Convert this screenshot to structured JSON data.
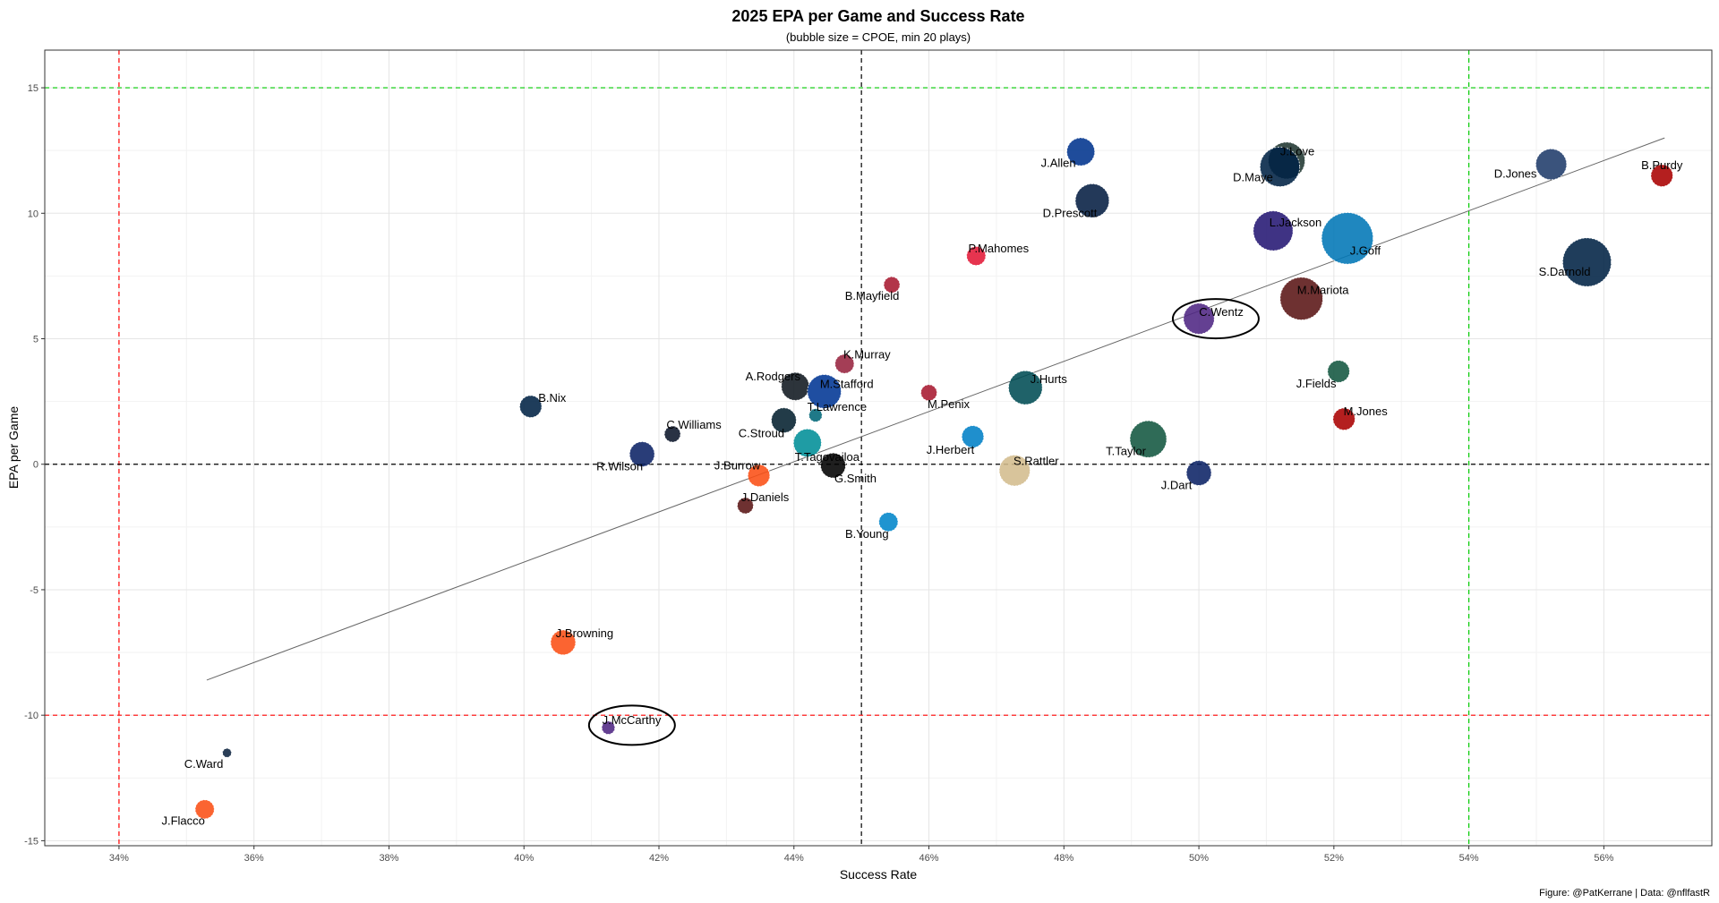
{
  "chart_data": {
    "type": "scatter",
    "title": "2025 EPA per Game and Success Rate",
    "subtitle": "(bubble size = CPOE, min 20 plays)",
    "xlabel": "Success Rate",
    "ylabel": "EPA per Game",
    "caption": "Figure: @PatKerrane | Data: @nflfastR",
    "xlim": [
      0.329,
      0.576
    ],
    "ylim": [
      -15.2,
      16.5
    ],
    "x_ticks": [
      0.34,
      0.36,
      0.38,
      0.4,
      0.42,
      0.44,
      0.46,
      0.48,
      0.5,
      0.52,
      0.54,
      0.56
    ],
    "x_tick_labels": [
      "34%",
      "36%",
      "38%",
      "40%",
      "42%",
      "44%",
      "46%",
      "48%",
      "50%",
      "52%",
      "54%",
      "56%"
    ],
    "y_ticks": [
      -15,
      -10,
      -5,
      0,
      5,
      10,
      15
    ],
    "y_tick_labels": [
      "-15",
      "-10",
      "-5",
      "0",
      "5",
      "10",
      "15"
    ],
    "grid": true,
    "reference_lines": {
      "vertical": [
        {
          "x": 0.34,
          "color": "#ff0000",
          "style": "dashed"
        },
        {
          "x": 0.45,
          "color": "#000000",
          "style": "dashed"
        },
        {
          "x": 0.54,
          "color": "#00cc00",
          "style": "dashed"
        }
      ],
      "horizontal": [
        {
          "y": 15,
          "color": "#00cc00",
          "style": "dashed"
        },
        {
          "y": 0,
          "color": "#000000",
          "style": "dashed"
        },
        {
          "y": -10,
          "color": "#ff0000",
          "style": "dashed"
        }
      ]
    },
    "trend_line": {
      "x": [
        0.353,
        0.569
      ],
      "y": [
        -8.6,
        13.0
      ],
      "color": "#666666"
    },
    "highlight_ellipses": [
      {
        "player": "C.Wentz",
        "cx": 0.5025,
        "cy": 5.8
      },
      {
        "player": "J.McCarthy",
        "cx": 0.416,
        "cy": -10.4
      }
    ],
    "points": [
      {
        "player": "B.Purdy",
        "x": 0.5686,
        "y": 11.5,
        "cpoe": 2.5,
        "color": "#aa0000",
        "label_dx": 0,
        "label_dy": -11
      },
      {
        "player": "D.Jones",
        "x": 0.5522,
        "y": 11.95,
        "cpoe": 4.0,
        "color": "#1f3b6a",
        "label_dx": -40,
        "label_dy": 11
      },
      {
        "player": "S.Darnold",
        "x": 0.5575,
        "y": 8.05,
        "cpoe": 7.0,
        "color": "#002244",
        "label_dx": -25,
        "label_dy": 11
      },
      {
        "player": "J.Love",
        "x": 0.513,
        "y": 12.1,
        "cpoe": 5.0,
        "color": "#203731",
        "label_dx": 12,
        "label_dy": -10
      },
      {
        "player": "D.Maye",
        "x": 0.512,
        "y": 11.85,
        "cpoe": 5.5,
        "color": "#002244",
        "label_dx": -30,
        "label_dy": 12
      },
      {
        "player": "J.Allen",
        "x": 0.4825,
        "y": 12.45,
        "cpoe": 3.5,
        "color": "#00338d",
        "label_dx": -25,
        "label_dy": 13
      },
      {
        "player": "D.Prescott",
        "x": 0.4842,
        "y": 10.5,
        "cpoe": 4.5,
        "color": "#041e42",
        "label_dx": -25,
        "label_dy": 14
      },
      {
        "player": "L.Jackson",
        "x": 0.511,
        "y": 9.3,
        "cpoe": 5.5,
        "color": "#241773",
        "label_dx": 25,
        "label_dy": -9
      },
      {
        "player": "J.Goff",
        "x": 0.522,
        "y": 9.0,
        "cpoe": 7.5,
        "color": "#0076b6",
        "label_dx": 20,
        "label_dy": 14
      },
      {
        "player": "M.Mariota",
        "x": 0.5152,
        "y": 6.6,
        "cpoe": 6.0,
        "color": "#5a1414",
        "label_dx": 24,
        "label_dy": -9
      },
      {
        "player": "C.Wentz",
        "x": 0.5,
        "y": 5.8,
        "cpoe": 4.0,
        "color": "#4f2683",
        "label_dx": 25,
        "label_dy": -7
      },
      {
        "player": "P.Mahomes",
        "x": 0.467,
        "y": 8.3,
        "cpoe": 2.0,
        "color": "#e31837",
        "label_dx": 25,
        "label_dy": -8
      },
      {
        "player": "B.Mayfield",
        "x": 0.4545,
        "y": 7.15,
        "cpoe": 1.5,
        "color": "#a71930",
        "label_dx": -22,
        "label_dy": 13
      },
      {
        "player": "K.Murray",
        "x": 0.4475,
        "y": 4.0,
        "cpoe": 2.0,
        "color": "#97233f",
        "label_dx": 25,
        "label_dy": -10
      },
      {
        "player": "A.Rodgers",
        "x": 0.4402,
        "y": 3.1,
        "cpoe": 3.5,
        "color": "#101820",
        "label_dx": -25,
        "label_dy": -11
      },
      {
        "player": "M.Stafford",
        "x": 0.4445,
        "y": 2.9,
        "cpoe": 4.5,
        "color": "#003594",
        "label_dx": 25,
        "label_dy": -8
      },
      {
        "player": "T.Lawrence",
        "x": 0.4432,
        "y": 1.95,
        "cpoe": 1.0,
        "color": "#006778",
        "label_dx": 24,
        "label_dy": -9
      },
      {
        "player": "M.Penix",
        "x": 0.46,
        "y": 2.85,
        "cpoe": 1.5,
        "color": "#a71930",
        "label_dx": 22,
        "label_dy": 13
      },
      {
        "player": "J.Hurts",
        "x": 0.4743,
        "y": 3.05,
        "cpoe": 4.5,
        "color": "#004c54",
        "label_dx": 26,
        "label_dy": -9
      },
      {
        "player": "J.Fields",
        "x": 0.5207,
        "y": 3.7,
        "cpoe": 2.5,
        "color": "#125740",
        "label_dx": -25,
        "label_dy": 14
      },
      {
        "player": "M.Jones",
        "x": 0.5215,
        "y": 1.8,
        "cpoe": 2.5,
        "color": "#aa0000",
        "label_dx": 24,
        "label_dy": -8
      },
      {
        "player": "T.Taylor",
        "x": 0.4925,
        "y": 1.0,
        "cpoe": 5.0,
        "color": "#125740",
        "label_dx": -25,
        "label_dy": 14
      },
      {
        "player": "J.Dart",
        "x": 0.5,
        "y": -0.35,
        "cpoe": 3.0,
        "color": "#0b2265",
        "label_dx": -25,
        "label_dy": 14
      },
      {
        "player": "B.Nix",
        "x": 0.401,
        "y": 2.3,
        "cpoe": 2.5,
        "color": "#002244",
        "label_dx": 24,
        "label_dy": -9
      },
      {
        "player": "C.Williams",
        "x": 0.422,
        "y": 1.2,
        "cpoe": 1.5,
        "color": "#0b162a",
        "label_dx": 24,
        "label_dy": -10
      },
      {
        "player": "C.Stroud",
        "x": 0.4385,
        "y": 1.75,
        "cpoe": 3.0,
        "color": "#03202f",
        "label_dx": -25,
        "label_dy": 15
      },
      {
        "player": "J.Herbert",
        "x": 0.4665,
        "y": 1.1,
        "cpoe": 2.5,
        "color": "#0080c6",
        "label_dx": -25,
        "label_dy": 15
      },
      {
        "player": "R.Wilson",
        "x": 0.4175,
        "y": 0.4,
        "cpoe": 3.0,
        "color": "#0b2265",
        "label_dx": -25,
        "label_dy": 14
      },
      {
        "player": "T.Tagovailoa",
        "x": 0.442,
        "y": 0.85,
        "cpoe": 3.5,
        "color": "#008e97",
        "label_dx": 22,
        "label_dy": 16
      },
      {
        "player": "G.Smith",
        "x": 0.4458,
        "y": -0.05,
        "cpoe": 3.0,
        "color": "#000000",
        "label_dx": 25,
        "label_dy": 15
      },
      {
        "player": "J.Burrow",
        "x": 0.4348,
        "y": -0.45,
        "cpoe": 2.5,
        "color": "#fb4f14",
        "label_dx": -24,
        "label_dy": -11
      },
      {
        "player": "S.Rattler",
        "x": 0.4727,
        "y": -0.25,
        "cpoe": 4.0,
        "color": "#d3bc8d",
        "label_dx": 24,
        "label_dy": -10
      },
      {
        "player": "J.Daniels",
        "x": 0.4328,
        "y": -1.65,
        "cpoe": 1.5,
        "color": "#5a1414",
        "label_dx": 22,
        "label_dy": -9
      },
      {
        "player": "B.Young",
        "x": 0.454,
        "y": -2.3,
        "cpoe": 2.0,
        "color": "#0085ca",
        "label_dx": -24,
        "label_dy": 14
      },
      {
        "player": "J.Browning",
        "x": 0.4058,
        "y": -7.1,
        "cpoe": 3.0,
        "color": "#fb4f14",
        "label_dx": 24,
        "label_dy": -10
      },
      {
        "player": "J.McCarthy",
        "x": 0.4125,
        "y": -10.5,
        "cpoe": 1.0,
        "color": "#4f2683",
        "label_dx": 26,
        "label_dy": -8
      },
      {
        "player": "C.Ward",
        "x": 0.356,
        "y": -11.5,
        "cpoe": 0.3,
        "color": "#0c2340",
        "label_dx": -26,
        "label_dy": 13
      },
      {
        "player": "J.Flacco",
        "x": 0.3527,
        "y": -13.75,
        "cpoe": 2.0,
        "color": "#fb4f14",
        "label_dx": -24,
        "label_dy": 13
      }
    ]
  }
}
